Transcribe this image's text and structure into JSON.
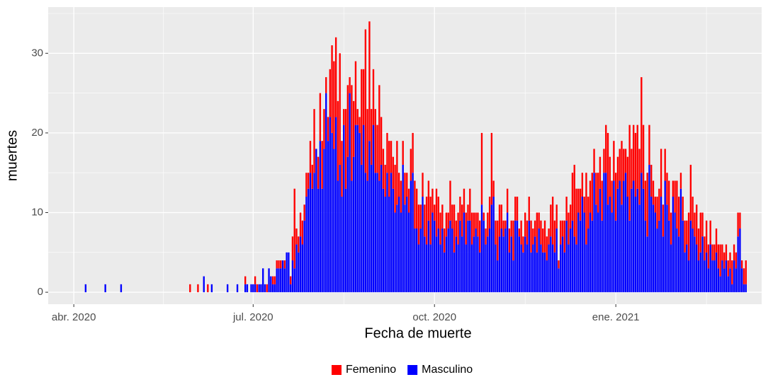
{
  "chart_data": {
    "type": "stacked-bar",
    "x_label": "Fecha de muerte",
    "y_label": "muertes",
    "xlim": [
      -13,
      349
    ],
    "ylim": [
      -1.5,
      35.8
    ],
    "xticks": [
      {
        "value": 0,
        "label": "abr. 2020"
      },
      {
        "value": 91,
        "label": "jul. 2020"
      },
      {
        "value": 183,
        "label": "oct. 2020"
      },
      {
        "value": 275,
        "label": "ene. 2021"
      }
    ],
    "yticks": [
      0,
      10,
      20,
      30
    ],
    "grid": true,
    "legend": "bottom",
    "x": [
      0,
      1,
      2,
      3,
      4,
      5,
      6,
      7,
      8,
      9,
      10,
      11,
      12,
      13,
      14,
      15,
      16,
      17,
      18,
      19,
      20,
      21,
      22,
      23,
      24,
      25,
      26,
      27,
      28,
      29,
      30,
      31,
      32,
      33,
      34,
      35,
      36,
      37,
      38,
      39,
      40,
      41,
      42,
      43,
      44,
      45,
      46,
      47,
      48,
      49,
      50,
      51,
      52,
      53,
      54,
      55,
      56,
      57,
      58,
      59,
      60,
      61,
      62,
      63,
      64,
      65,
      66,
      67,
      68,
      69,
      70,
      71,
      72,
      73,
      74,
      75,
      76,
      77,
      78,
      79,
      80,
      81,
      82,
      83,
      84,
      85,
      86,
      87,
      88,
      89,
      90,
      91,
      92,
      93,
      94,
      95,
      96,
      97,
      98,
      99,
      100,
      101,
      102,
      103,
      104,
      105,
      106,
      107,
      108,
      109,
      110,
      111,
      112,
      113,
      114,
      115,
      116,
      117,
      118,
      119,
      120,
      121,
      122,
      123,
      124,
      125,
      126,
      127,
      128,
      129,
      130,
      131,
      132,
      133,
      134,
      135,
      136,
      137,
      138,
      139,
      140,
      141,
      142,
      143,
      144,
      145,
      146,
      147,
      148,
      149,
      150,
      151,
      152,
      153,
      154,
      155,
      156,
      157,
      158,
      159,
      160,
      161,
      162,
      163,
      164,
      165,
      166,
      167,
      168,
      169,
      170,
      171,
      172,
      173,
      174,
      175,
      176,
      177,
      178,
      179,
      180,
      181,
      182,
      183,
      184,
      185,
      186,
      187,
      188,
      189,
      190,
      191,
      192,
      193,
      194,
      195,
      196,
      197,
      198,
      199,
      200,
      201,
      202,
      203,
      204,
      205,
      206,
      207,
      208,
      209,
      210,
      211,
      212,
      213,
      214,
      215,
      216,
      217,
      218,
      219,
      220,
      221,
      222,
      223,
      224,
      225,
      226,
      227,
      228,
      229,
      230,
      231,
      232,
      233,
      234,
      235,
      236,
      237,
      238,
      239,
      240,
      241,
      242,
      243,
      244,
      245,
      246,
      247,
      248,
      249,
      250,
      251,
      252,
      253,
      254,
      255,
      256,
      257,
      258,
      259,
      260,
      261,
      262,
      263,
      264,
      265,
      266,
      267,
      268,
      269,
      270,
      271,
      272,
      273,
      274,
      275,
      276,
      277,
      278,
      279,
      280,
      281,
      282,
      283,
      284,
      285,
      286,
      287,
      288,
      289,
      290,
      291,
      292,
      293,
      294,
      295,
      296,
      297,
      298,
      299,
      300,
      301,
      302,
      303,
      304,
      305,
      306,
      307,
      308,
      309,
      310,
      311,
      312,
      313,
      314,
      315,
      316,
      317,
      318,
      319,
      320,
      321,
      322,
      323,
      324,
      325,
      326,
      327,
      328,
      329,
      330,
      331,
      332,
      333,
      334,
      335,
      336,
      337,
      338,
      339,
      340,
      341,
      342,
      343
    ],
    "series": [
      {
        "name": "Femenino",
        "color": "#ff0000",
        "values": [
          0,
          0,
          0,
          0,
          0,
          0,
          0,
          0,
          0,
          0,
          0,
          0,
          0,
          0,
          0,
          0,
          0,
          0,
          0,
          0,
          0,
          0,
          0,
          0,
          0,
          0,
          0,
          0,
          0,
          0,
          0,
          0,
          0,
          0,
          0,
          0,
          0,
          0,
          0,
          0,
          0,
          0,
          0,
          0,
          0,
          0,
          0,
          0,
          0,
          0,
          0,
          0,
          0,
          0,
          0,
          0,
          0,
          0,
          0,
          1,
          0,
          0,
          0,
          1,
          0,
          0,
          0,
          0,
          1,
          0,
          0,
          0,
          0,
          0,
          0,
          0,
          0,
          0,
          0,
          0,
          0,
          0,
          0,
          0,
          0,
          0,
          0,
          1,
          0,
          0,
          0,
          0,
          1,
          1,
          0,
          0,
          0,
          0,
          1,
          0,
          0,
          1,
          1,
          1,
          1,
          1,
          0,
          1,
          0,
          0,
          1,
          3,
          10,
          2,
          2,
          3,
          3,
          2,
          3,
          2,
          4,
          3,
          8,
          0,
          4,
          6,
          6,
          5,
          2,
          3,
          6,
          11,
          11,
          10,
          10,
          14,
          7,
          2,
          10,
          9,
          2,
          12,
          7,
          8,
          2,
          2,
          12,
          7,
          18,
          9,
          15,
          7,
          7,
          8,
          6,
          12,
          6,
          5,
          4,
          5,
          7,
          4,
          4,
          6,
          8,
          3,
          4,
          3,
          4,
          3,
          3,
          4,
          5,
          6,
          5,
          5,
          3,
          3,
          4,
          6,
          5,
          6,
          3,
          2,
          6,
          4,
          4,
          3,
          3,
          3,
          2,
          5,
          3,
          6,
          2,
          4,
          3,
          4,
          3,
          4,
          2,
          4,
          4,
          3,
          2,
          3,
          4,
          9,
          1,
          2,
          3,
          4,
          9,
          2,
          3,
          5,
          4,
          3,
          2,
          1,
          3,
          3,
          2,
          5,
          3,
          3,
          1,
          3,
          2,
          3,
          3,
          3,
          4,
          2,
          2,
          5,
          2,
          3,
          3,
          4,
          3,
          2,
          4,
          6,
          4,
          3,
          1,
          3,
          2,
          4,
          3,
          4,
          3,
          6,
          9,
          7,
          3,
          4,
          3,
          2,
          9,
          4,
          4,
          6,
          3,
          4,
          5,
          4,
          5,
          3,
          6,
          9,
          5,
          4,
          5,
          6,
          4,
          4,
          8,
          4,
          3,
          5,
          12,
          5,
          7,
          8,
          8,
          7,
          12,
          8,
          5,
          8,
          5,
          4,
          3,
          2,
          4,
          4,
          6,
          4,
          4,
          4,
          5,
          4,
          2,
          4,
          6,
          5,
          2,
          3,
          4,
          3,
          6,
          7,
          4,
          3,
          5,
          4,
          5,
          3,
          3,
          4,
          3,
          3,
          2,
          2,
          3,
          3,
          4,
          2,
          2,
          2,
          2,
          2,
          3,
          2,
          2,
          3,
          2,
          1,
          2,
          3,
          0,
          0
        ]
      },
      {
        "name": "Masculino",
        "color": "#0000ff",
        "values": [
          0,
          0,
          0,
          0,
          0,
          0,
          1,
          0,
          0,
          0,
          0,
          0,
          0,
          0,
          0,
          0,
          1,
          0,
          0,
          0,
          0,
          0,
          0,
          0,
          1,
          0,
          0,
          0,
          0,
          0,
          0,
          0,
          0,
          0,
          0,
          0,
          0,
          0,
          0,
          0,
          0,
          0,
          0,
          0,
          0,
          0,
          0,
          0,
          0,
          0,
          0,
          0,
          0,
          0,
          0,
          0,
          0,
          0,
          0,
          0,
          0,
          0,
          0,
          0,
          0,
          0,
          2,
          0,
          0,
          0,
          1,
          0,
          0,
          0,
          0,
          0,
          0,
          0,
          1,
          0,
          0,
          0,
          0,
          1,
          0,
          0,
          0,
          1,
          1,
          0,
          1,
          1,
          1,
          0,
          1,
          1,
          3,
          1,
          0,
          3,
          2,
          1,
          1,
          3,
          3,
          3,
          4,
          3,
          5,
          5,
          1,
          4,
          3,
          6,
          5,
          7,
          6,
          9,
          12,
          13,
          15,
          13,
          15,
          18,
          13,
          19,
          13,
          18,
          25,
          19,
          22,
          20,
          18,
          22,
          14,
          16,
          12,
          21,
          13,
          17,
          25,
          14,
          17,
          21,
          21,
          20,
          16,
          21,
          15,
          14,
          19,
          16,
          21,
          15,
          15,
          14,
          16,
          13,
          12,
          15,
          12,
          15,
          13,
          10,
          11,
          12,
          10,
          16,
          11,
          12,
          10,
          14,
          15,
          8,
          8,
          6,
          8,
          12,
          7,
          6,
          9,
          6,
          10,
          9,
          7,
          8,
          6,
          8,
          5,
          7,
          8,
          9,
          8,
          5,
          7,
          6,
          9,
          7,
          10,
          6,
          9,
          9,
          6,
          7,
          8,
          7,
          5,
          11,
          9,
          6,
          7,
          8,
          11,
          12,
          6,
          4,
          7,
          8,
          7,
          8,
          10,
          5,
          7,
          4,
          9,
          9,
          7,
          6,
          5,
          7,
          6,
          9,
          5,
          6,
          7,
          5,
          8,
          6,
          5,
          5,
          4,
          6,
          7,
          6,
          5,
          8,
          3,
          6,
          7,
          5,
          9,
          6,
          8,
          9,
          7,
          6,
          10,
          9,
          12,
          10,
          6,
          8,
          10,
          9,
          15,
          11,
          10,
          13,
          9,
          15,
          15,
          11,
          12,
          10,
          14,
          9,
          13,
          14,
          11,
          14,
          15,
          12,
          9,
          13,
          14,
          12,
          13,
          11,
          15,
          13,
          9,
          7,
          16,
          12,
          11,
          10,
          8,
          9,
          12,
          7,
          14,
          11,
          9,
          6,
          12,
          10,
          8,
          7,
          13,
          9,
          5,
          6,
          4,
          9,
          8,
          7,
          6,
          4,
          5,
          7,
          4,
          5,
          3,
          6,
          4,
          4,
          5,
          3,
          2,
          4,
          3,
          4,
          2,
          3,
          1,
          4,
          3,
          7,
          8,
          3,
          1,
          1,
          0,
          0
        ]
      }
    ]
  }
}
